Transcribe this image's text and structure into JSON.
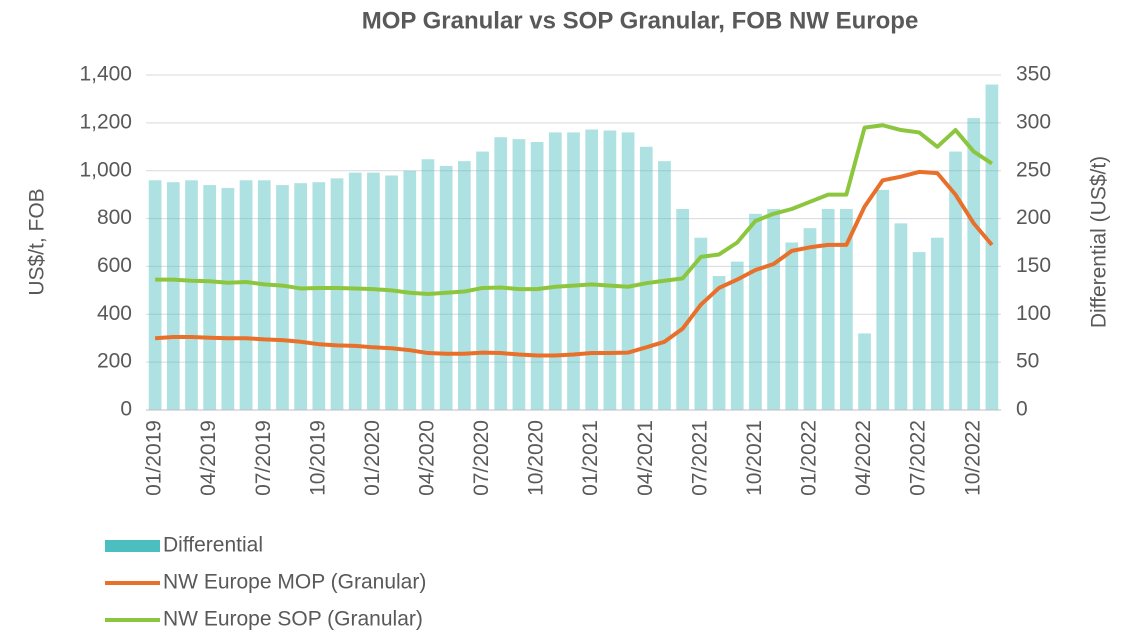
{
  "chart_data": {
    "type": "line",
    "title": "MOP Granular vs SOP Granular, FOB NW Europe",
    "y_label": "US$/t, FOB",
    "y2_label": "Differential  (US$/t)",
    "categories": [
      "01/2019",
      null,
      null,
      "04/2019",
      null,
      null,
      "07/2019",
      null,
      null,
      "10/2019",
      null,
      null,
      "01/2020",
      null,
      null,
      "04/2020",
      null,
      null,
      "07/2020",
      null,
      null,
      "10/2020",
      null,
      null,
      "01/2021",
      null,
      null,
      "04/2021",
      null,
      null,
      "07/2021",
      null,
      null,
      "10/2021",
      null,
      null,
      "01/2022",
      null,
      null,
      "04/2022",
      null,
      null,
      "07/2022",
      null,
      null,
      "10/2022",
      null
    ],
    "series": [
      {
        "name": "Differential",
        "type": "bar",
        "axis": "y2",
        "color": "#4bbfbf",
        "values": [
          240,
          238,
          240,
          235,
          232,
          240,
          240,
          235,
          237,
          238,
          242,
          248,
          248,
          245,
          250,
          262,
          255,
          260,
          270,
          285,
          283,
          280,
          290,
          290,
          293,
          292,
          290,
          275,
          260,
          210,
          180,
          140,
          155,
          205,
          210,
          175,
          190,
          210,
          210,
          80,
          230,
          195,
          165,
          180,
          270,
          305,
          340
        ]
      },
      {
        "name": "NW Europe MOP (Granular)",
        "type": "line",
        "color": "#e8702a",
        "values": [
          300,
          305,
          305,
          302,
          300,
          300,
          295,
          292,
          285,
          275,
          270,
          268,
          262,
          258,
          250,
          238,
          235,
          235,
          240,
          238,
          232,
          228,
          228,
          232,
          238,
          238,
          240,
          262,
          285,
          340,
          440,
          510,
          545,
          585,
          610,
          665,
          680,
          690,
          690,
          850,
          960,
          975,
          995,
          990,
          900,
          780,
          690
        ]
      },
      {
        "name": "NW Europe SOP (Granular)",
        "type": "line",
        "color": "#8cc63f",
        "values": [
          545,
          545,
          540,
          538,
          532,
          535,
          525,
          520,
          508,
          510,
          510,
          508,
          505,
          500,
          490,
          485,
          490,
          495,
          510,
          512,
          505,
          505,
          515,
          520,
          525,
          520,
          515,
          530,
          540,
          550,
          640,
          650,
          700,
          790,
          820,
          840,
          870,
          900,
          900,
          1180,
          1190,
          1170,
          1160,
          1100,
          1170,
          1080,
          1030
        ]
      }
    ],
    "ylim": [
      0,
      1400
    ],
    "yticks": [
      0,
      200,
      400,
      600,
      800,
      {
        "value": 1000,
        "label": "1,000"
      },
      {
        "value": 1200,
        "label": "1,200"
      },
      {
        "value": 1400,
        "label": "1,400"
      }
    ],
    "y2lim": [
      0,
      350
    ],
    "y2ticks": [
      0,
      50,
      100,
      150,
      200,
      250,
      300,
      350
    ],
    "grid": true,
    "legend": "bottom"
  }
}
